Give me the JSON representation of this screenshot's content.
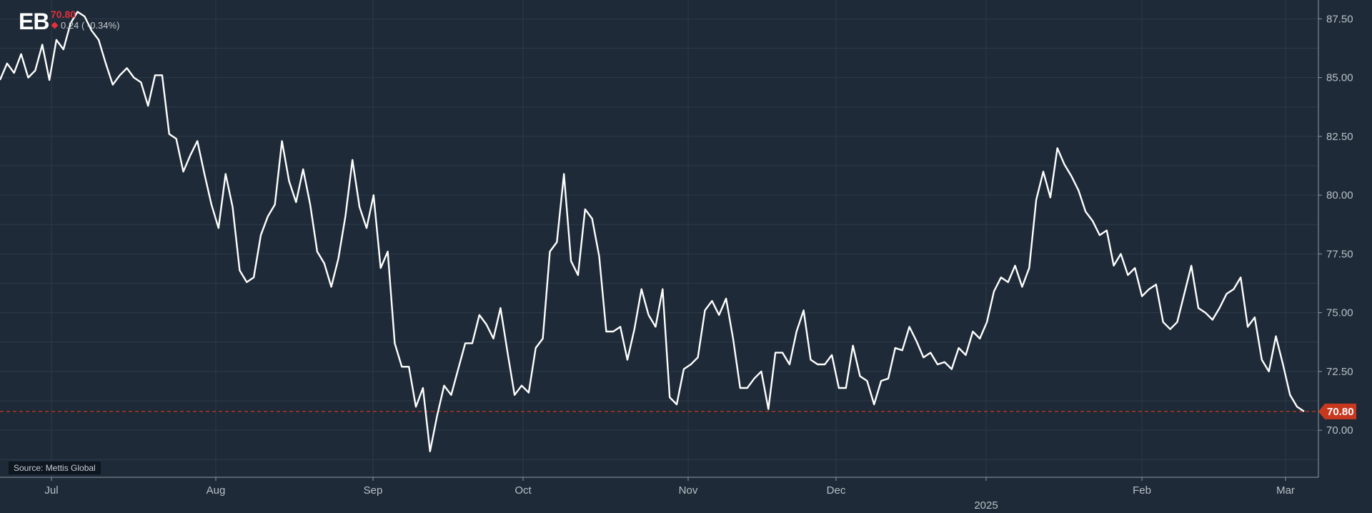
{
  "header": {
    "ticker": "EB",
    "last_price": "70.80",
    "change": "0.24",
    "change_pct": "( -0.34%)"
  },
  "source": "Source: Mettis Global",
  "price_tag": "70.80",
  "colors": {
    "background": "#1e2a37",
    "grid": "#2c3a48",
    "line": "#ffffff",
    "axis": "#8f99a4",
    "accent_down": "#e4303c",
    "price_tag": "#c8381e",
    "last_price_line": "#c8381e"
  },
  "chart_data": {
    "type": "line",
    "title": "",
    "xlabel": "",
    "ylabel": "",
    "x_tick_labels": [
      "Jul",
      "Aug",
      "Sep",
      "Oct",
      "Nov",
      "Dec",
      "Feb",
      "Mar"
    ],
    "x_year_label": "2025",
    "y_ticks": [
      "70.00",
      "72.50",
      "75.00",
      "77.50",
      "80.00",
      "82.50",
      "85.00",
      "87.50"
    ],
    "ylim": [
      68.0,
      88.3
    ],
    "y_axis_position": "right",
    "grid": true,
    "last_value": 70.8,
    "series": [
      {
        "values": [
          84.9,
          85.6,
          85.2,
          86.0,
          85.0,
          85.3,
          86.4,
          84.9,
          86.6,
          86.2,
          87.3,
          87.8,
          87.6,
          87.0,
          86.6,
          85.6,
          84.7,
          85.1,
          85.4,
          85.0,
          84.8,
          83.8,
          85.1,
          85.1,
          82.6,
          82.4,
          81.0,
          81.7,
          82.3,
          80.9,
          79.6,
          78.6,
          80.9,
          79.5,
          76.8,
          76.3,
          76.5,
          78.3,
          79.1,
          79.6,
          82.3,
          80.6,
          79.7,
          81.1,
          79.6,
          77.6,
          77.1,
          76.1,
          77.3,
          79.1,
          81.5,
          79.5,
          78.6,
          80.0,
          76.9,
          77.6,
          73.7,
          72.7,
          72.7,
          71.0,
          71.8,
          69.1,
          70.6,
          71.9,
          71.5,
          72.6,
          73.7,
          73.7,
          74.9,
          74.5,
          73.9,
          75.2,
          73.3,
          71.5,
          71.9,
          71.6,
          73.5,
          73.9,
          77.6,
          78.0,
          80.9,
          77.2,
          76.6,
          79.4,
          79.0,
          77.4,
          74.2,
          74.2,
          74.4,
          73.0,
          74.3,
          76.0,
          74.9,
          74.4,
          76.0,
          71.4,
          71.1,
          72.6,
          72.8,
          73.1,
          75.1,
          75.5,
          74.9,
          75.6,
          73.9,
          71.8,
          71.8,
          72.2,
          72.5,
          70.9,
          73.3,
          73.3,
          72.8,
          74.2,
          75.1,
          73.0,
          72.8,
          72.8,
          73.2,
          71.8,
          71.8,
          73.6,
          72.3,
          72.1,
          71.1,
          72.1,
          72.2,
          73.5,
          73.4,
          74.4,
          73.8,
          73.1,
          73.3,
          72.8,
          72.9,
          72.6,
          73.5,
          73.2,
          74.2,
          73.9,
          74.6,
          75.9,
          76.5,
          76.3,
          77.0,
          76.1,
          76.9,
          79.8,
          81.0,
          79.9,
          82.0,
          81.3,
          80.8,
          80.2,
          79.3,
          78.9,
          78.3,
          78.5,
          77.0,
          77.5,
          76.6,
          76.9,
          75.7,
          76.0,
          76.2,
          74.6,
          74.3,
          74.6,
          75.8,
          77.0,
          75.2,
          75.0,
          74.7,
          75.2,
          75.8,
          76.0,
          76.5,
          74.4,
          74.8,
          73.0,
          72.5,
          74.0,
          72.8,
          71.5,
          71.0,
          70.8
        ]
      }
    ]
  }
}
